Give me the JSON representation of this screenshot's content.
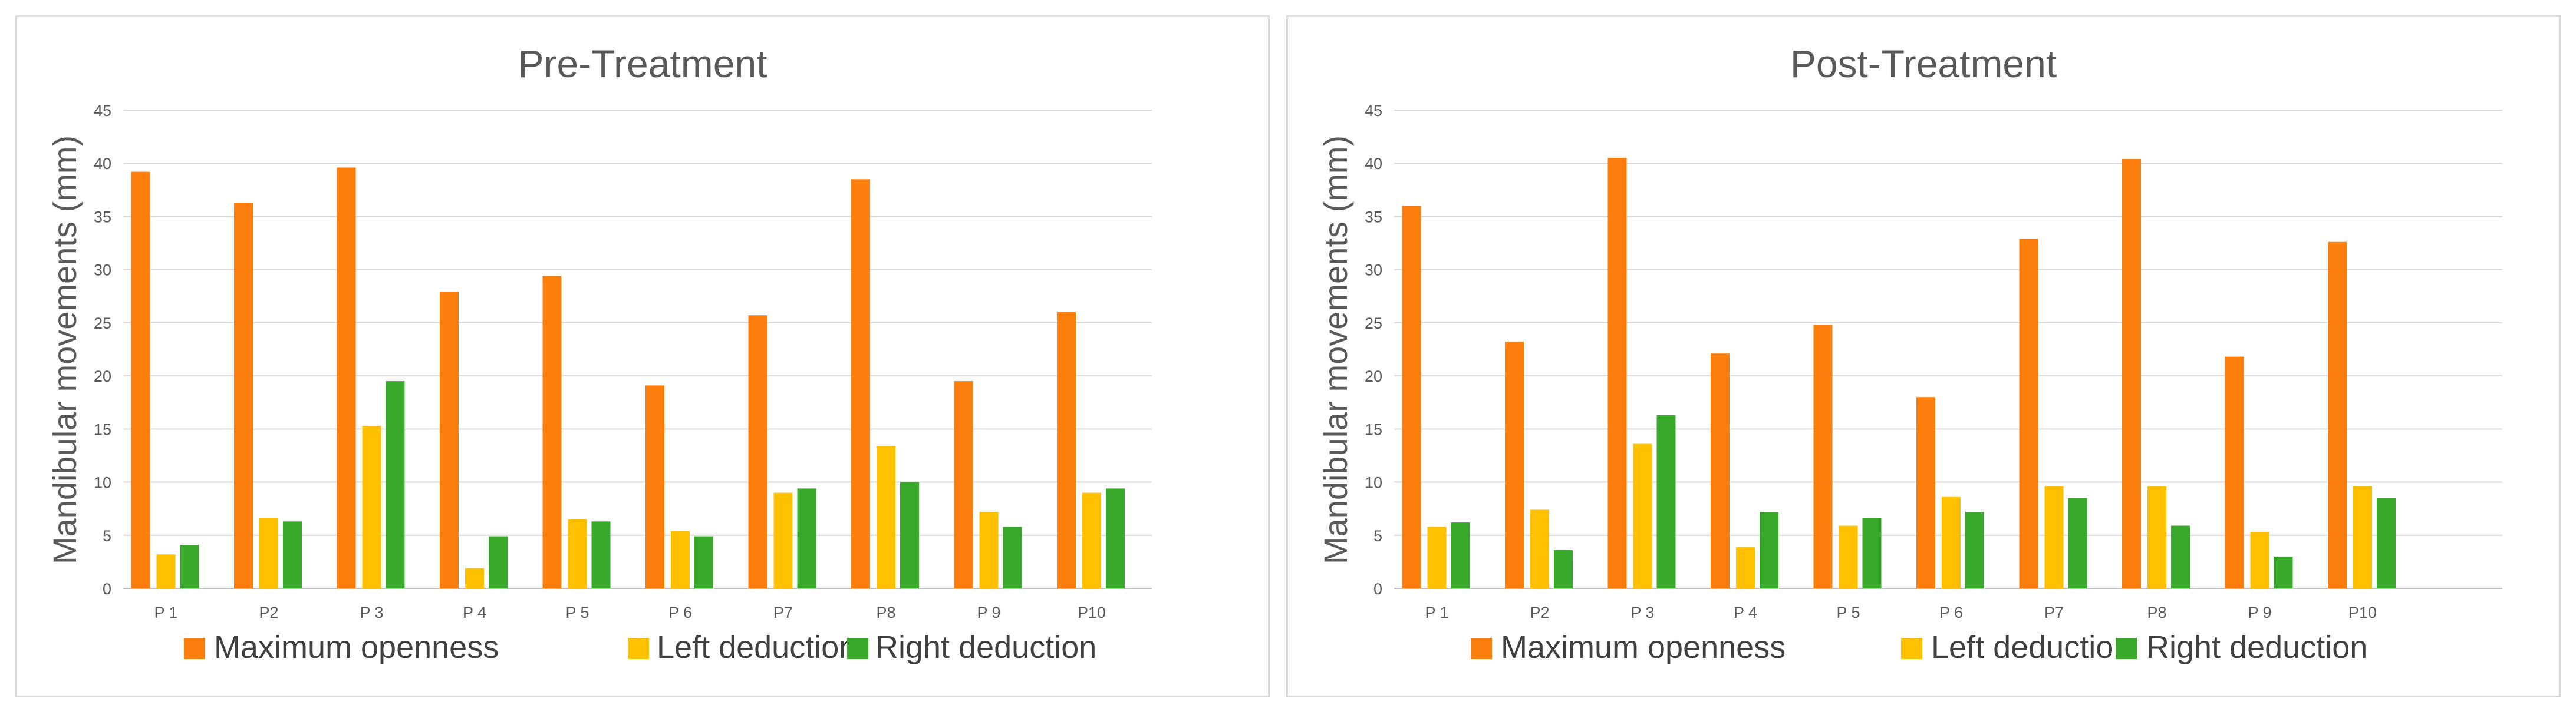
{
  "charts": [
    {
      "title": "Pre-Treatment",
      "ylabel": "Mandibular movements (mm)",
      "yticks": [
        "0",
        "5",
        "10",
        "15",
        "20",
        "25",
        "30",
        "35",
        "40",
        "45"
      ],
      "legend": [
        "Maximum openness",
        "Left deduction",
        "Right deduction"
      ]
    },
    {
      "title": "Post-Treatment",
      "ylabel": "Mandibular movements (mm)",
      "yticks": [
        "0",
        "5",
        "10",
        "15",
        "20",
        "25",
        "30",
        "35",
        "40",
        "45"
      ],
      "legend": [
        "Maximum openness",
        "Left deduction",
        "Right deduction"
      ]
    }
  ],
  "colors": {
    "max_openness": "#fb7e0c",
    "left_deduction": "#ffc000",
    "right_deduction": "#38a82b"
  },
  "chart_data": [
    {
      "type": "bar",
      "title": "Pre-Treatment",
      "xlabel": "",
      "ylabel": "Mandibular movements (mm)",
      "ylim": [
        0,
        45
      ],
      "grid": true,
      "legend_position": "bottom",
      "categories": [
        "P 1",
        "P2",
        "P 3",
        "P 4",
        "P 5",
        "P 6",
        "P7",
        "P8",
        "P 9",
        "P10"
      ],
      "series": [
        {
          "name": "Maximum openness",
          "color": "#fb7e0c",
          "values": [
            39.2,
            36.3,
            39.6,
            27.9,
            29.4,
            19.1,
            25.7,
            38.5,
            19.5,
            26.0
          ]
        },
        {
          "name": "Left deduction",
          "color": "#ffc000",
          "values": [
            3.2,
            6.6,
            15.3,
            1.9,
            6.5,
            5.4,
            9.0,
            13.4,
            7.2,
            9.0
          ]
        },
        {
          "name": "Right deduction",
          "color": "#38a82b",
          "values": [
            4.1,
            6.3,
            19.5,
            4.9,
            6.3,
            4.9,
            9.4,
            10.0,
            5.8,
            9.4
          ]
        }
      ]
    },
    {
      "type": "bar",
      "title": "Post-Treatment",
      "xlabel": "",
      "ylabel": "Mandibular movements (mm)",
      "ylim": [
        0,
        45
      ],
      "grid": true,
      "legend_position": "bottom",
      "categories": [
        "P 1",
        "P2",
        "P 3",
        "P 4",
        "P 5",
        "P 6",
        "P7",
        "P8",
        "P 9",
        "P10"
      ],
      "series": [
        {
          "name": "Maximum openness",
          "color": "#fb7e0c",
          "values": [
            36.0,
            23.2,
            40.5,
            22.1,
            24.8,
            18.0,
            32.9,
            40.4,
            21.8,
            32.6
          ]
        },
        {
          "name": "Left deduction",
          "color": "#ffc000",
          "values": [
            5.8,
            7.4,
            13.6,
            3.9,
            5.9,
            8.6,
            9.6,
            9.6,
            5.3,
            9.6
          ]
        },
        {
          "name": "Right deduction",
          "color": "#38a82b",
          "values": [
            6.2,
            3.6,
            16.3,
            7.2,
            6.6,
            7.2,
            8.5,
            5.9,
            3.0,
            8.5
          ]
        }
      ]
    }
  ]
}
